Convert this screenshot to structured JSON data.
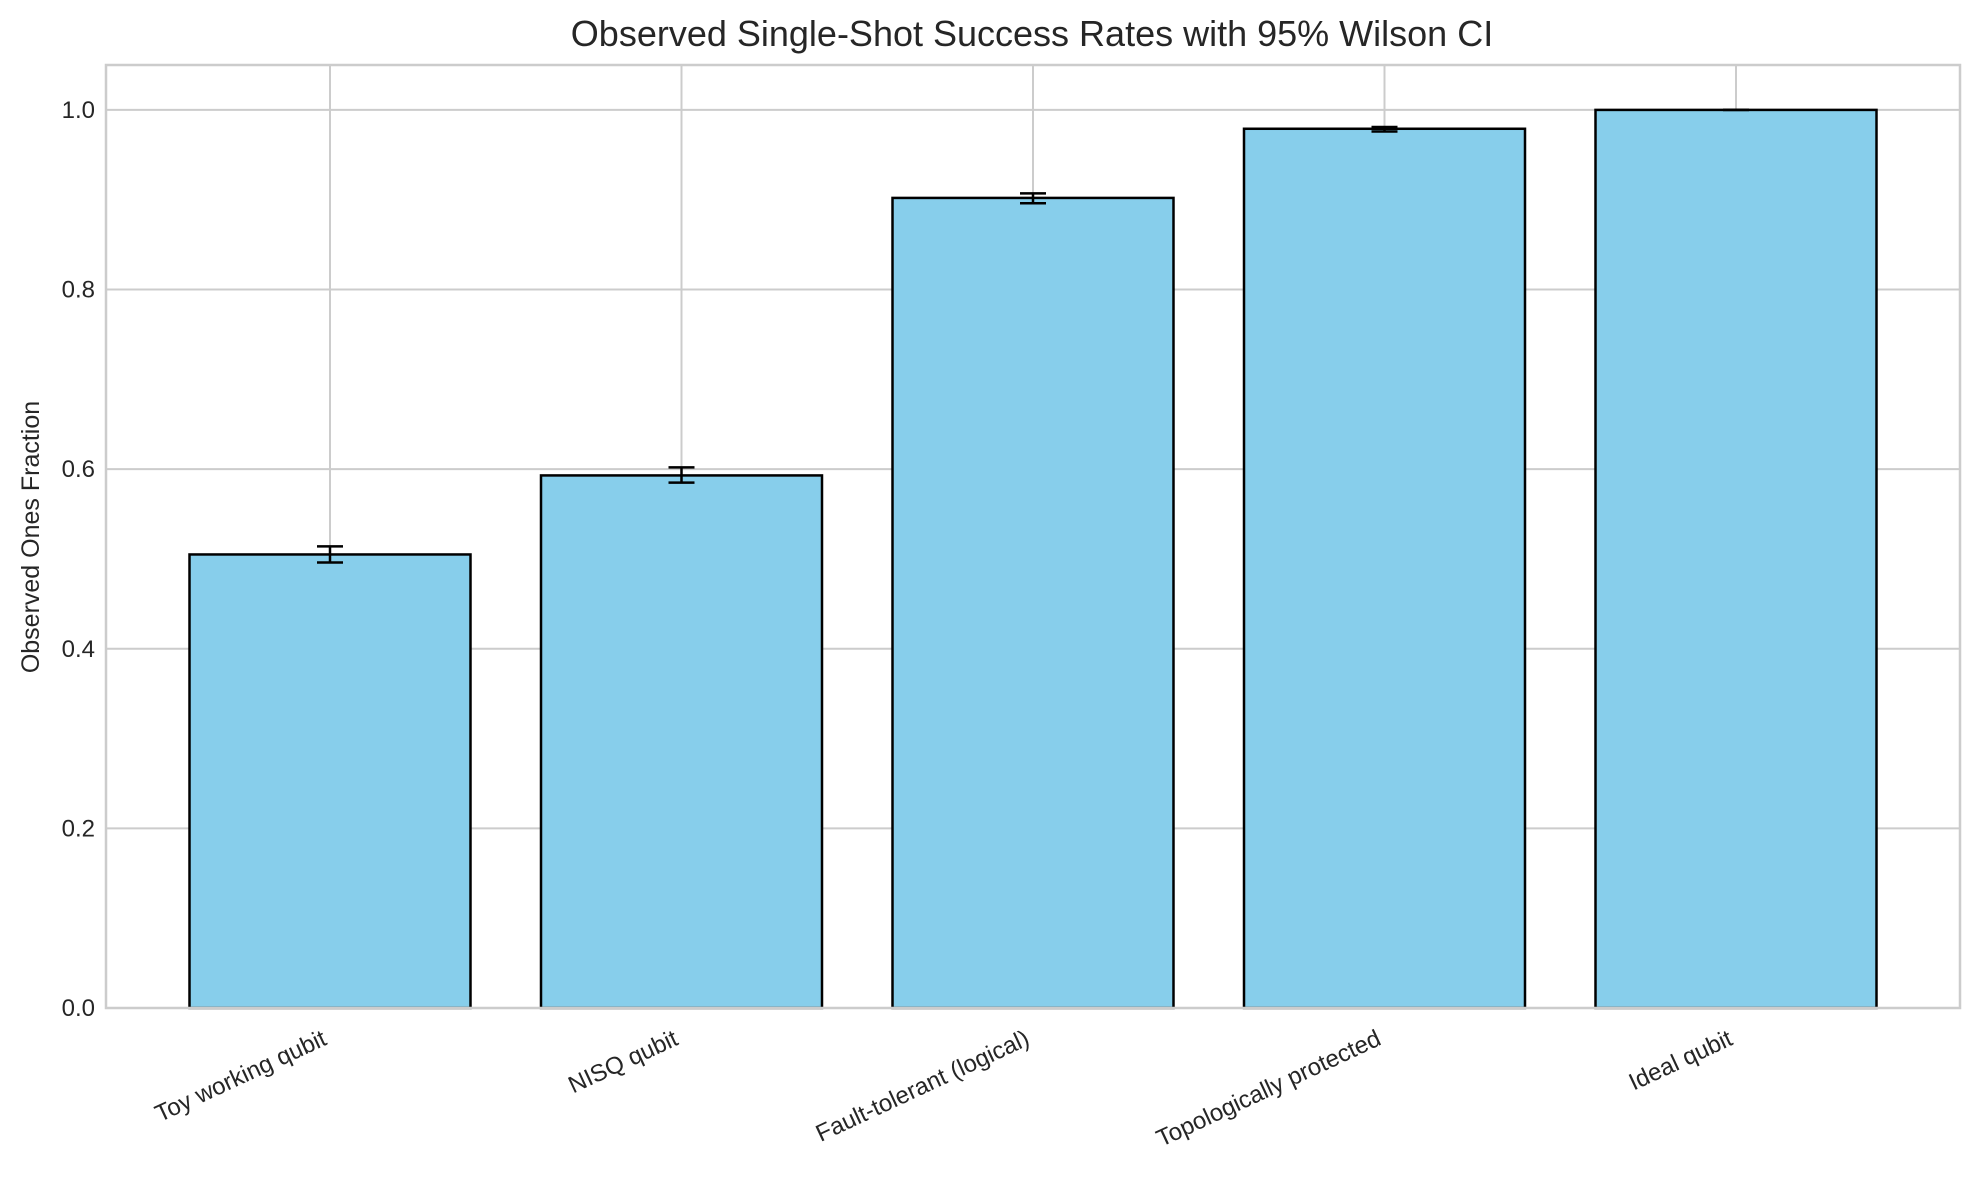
{
  "chart_data": {
    "type": "bar",
    "title": "Observed Single-Shot Success Rates with 95% Wilson CI",
    "xlabel": "",
    "ylabel": "Observed Ones Fraction",
    "categories": [
      "Toy working qubit",
      "NISQ qubit",
      "Fault-tolerant (logical)",
      "Topologically protected",
      "Ideal qubit"
    ],
    "values": [
      0.505,
      0.593,
      0.902,
      0.979,
      1.0
    ],
    "ci_lower": [
      0.496,
      0.585,
      0.896,
      0.976,
      1.0
    ],
    "ci_upper": [
      0.514,
      0.602,
      0.907,
      0.981,
      1.0
    ],
    "ylim": [
      0,
      1.05
    ],
    "yticks": [
      0.0,
      0.2,
      0.4,
      0.6,
      0.8,
      1.0
    ],
    "ytick_labels": [
      "0.0",
      "0.2",
      "0.4",
      "0.6",
      "0.8",
      "1.0"
    ],
    "grid": true,
    "colors": {
      "bar_fill": "#87CEEB",
      "bar_edge": "#000000",
      "grid": "#cccccc"
    }
  }
}
